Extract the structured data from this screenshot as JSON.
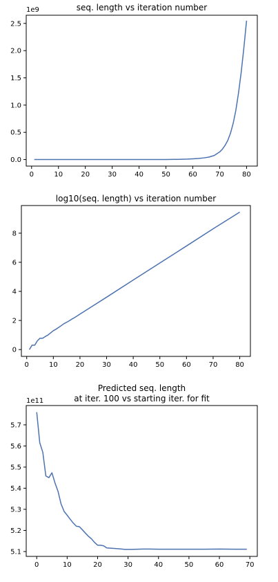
{
  "chart_data": [
    {
      "type": "line",
      "title": "seq. length vs iteration number",
      "xlabel": "",
      "ylabel": "",
      "offset_text": "1e9",
      "xlim": [
        -2.0,
        84.0
      ],
      "ylim": [
        -0.12,
        2.65
      ],
      "xticks": [
        0,
        10,
        20,
        30,
        40,
        50,
        60,
        70,
        80
      ],
      "xtick_labels": [
        "0",
        "10",
        "20",
        "30",
        "40",
        "50",
        "60",
        "70",
        "80"
      ],
      "yticks": [
        0.0,
        0.5,
        1.0,
        1.5,
        2.0,
        2.5
      ],
      "ytick_labels": [
        "0.0",
        "0.5",
        "1.0",
        "1.5",
        "2.0",
        "2.5"
      ],
      "grid": false,
      "series": [
        {
          "x": [
            1,
            10,
            20,
            30,
            40,
            50,
            55,
            58,
            60,
            62,
            64,
            66,
            68,
            70,
            71,
            72,
            73,
            74,
            75,
            76,
            77,
            78,
            79,
            80
          ],
          "y": [
            0,
            0,
            0,
            0,
            0,
            0.001,
            0.004,
            0.008,
            0.013,
            0.02,
            0.03,
            0.045,
            0.075,
            0.14,
            0.19,
            0.26,
            0.35,
            0.48,
            0.66,
            0.9,
            1.22,
            1.6,
            2.05,
            2.55
          ]
        }
      ]
    },
    {
      "type": "line",
      "title": "log10(seq. length) vs iteration number",
      "xlabel": "",
      "ylabel": "",
      "offset_text": "",
      "xlim": [
        -2.0,
        84.0
      ],
      "ylim": [
        -0.47,
        9.9
      ],
      "xticks": [
        0,
        10,
        20,
        30,
        40,
        50,
        60,
        70,
        80
      ],
      "xtick_labels": [
        "0",
        "10",
        "20",
        "30",
        "40",
        "50",
        "60",
        "70",
        "80"
      ],
      "yticks": [
        0,
        2,
        4,
        6,
        8
      ],
      "ytick_labels": [
        "0",
        "2",
        "4",
        "6",
        "8"
      ],
      "grid": false,
      "series": [
        {
          "x": [
            1,
            2,
            3,
            4,
            5,
            6,
            7,
            8,
            9,
            10,
            11,
            12,
            13,
            14,
            15,
            16,
            17,
            18,
            19,
            20,
            30,
            40,
            50,
            60,
            70,
            80
          ],
          "y": [
            0.0,
            0.3,
            0.3,
            0.6,
            0.78,
            0.78,
            0.9,
            1.0,
            1.15,
            1.3,
            1.4,
            1.52,
            1.65,
            1.78,
            1.88,
            1.98,
            2.1,
            2.2,
            2.32,
            2.44,
            3.6,
            4.78,
            5.95,
            7.12,
            8.3,
            9.45
          ]
        }
      ]
    },
    {
      "type": "line",
      "title": "Predicted seq. length\nat iter. 100 vs starting iter. for fit",
      "xlabel": "",
      "ylabel": "",
      "offset_text": "1e11",
      "xlim": [
        -3.45,
        72.45
      ],
      "ylim": [
        5.077,
        5.7915
      ],
      "xticks": [
        0,
        10,
        20,
        30,
        40,
        50,
        60,
        70
      ],
      "xtick_labels": [
        "0",
        "10",
        "20",
        "30",
        "40",
        "50",
        "60",
        "70"
      ],
      "yticks": [
        5.1,
        5.2,
        5.3,
        5.4,
        5.5,
        5.6,
        5.7
      ],
      "ytick_labels": [
        "5.1",
        "5.2",
        "5.3",
        "5.4",
        "5.5",
        "5.6",
        "5.7"
      ],
      "grid": false,
      "series": [
        {
          "x": [
            0,
            1,
            2,
            3,
            4,
            5,
            6,
            7,
            8,
            9,
            10,
            11,
            12,
            13,
            14,
            15,
            16,
            17,
            18,
            19,
            20,
            21,
            22,
            23,
            25,
            27,
            29,
            31,
            33,
            35,
            37,
            40,
            45,
            50,
            55,
            60,
            65,
            69
          ],
          "y": [
            5.76,
            5.615,
            5.57,
            5.458,
            5.45,
            5.473,
            5.425,
            5.385,
            5.325,
            5.29,
            5.272,
            5.253,
            5.235,
            5.22,
            5.218,
            5.203,
            5.187,
            5.172,
            5.16,
            5.143,
            5.13,
            5.13,
            5.127,
            5.117,
            5.115,
            5.113,
            5.11,
            5.11,
            5.111,
            5.112,
            5.112,
            5.111,
            5.111,
            5.111,
            5.111,
            5.112,
            5.111,
            5.111
          ]
        }
      ]
    }
  ]
}
